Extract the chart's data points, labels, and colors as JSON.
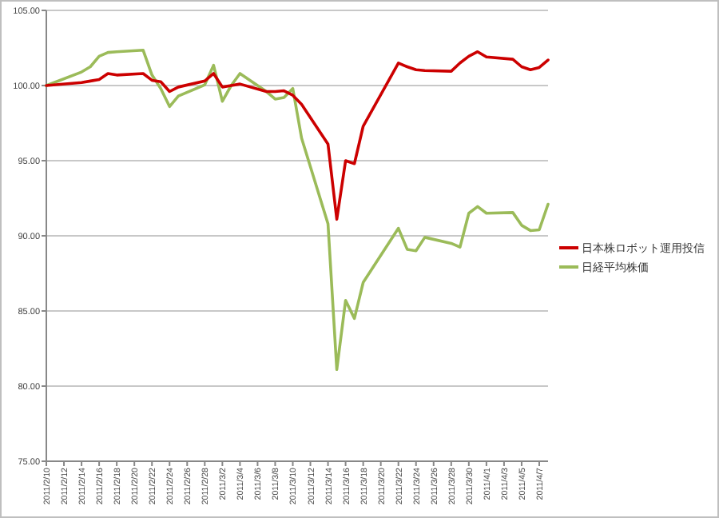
{
  "chart_data": {
    "type": "line",
    "x": [
      "2011-02-10",
      "2011-02-14",
      "2011-02-15",
      "2011-02-16",
      "2011-02-17",
      "2011-02-18",
      "2011-02-21",
      "2011-02-22",
      "2011-02-23",
      "2011-02-24",
      "2011-02-25",
      "2011-02-28",
      "2011-03-01",
      "2011-03-02",
      "2011-03-03",
      "2011-03-04",
      "2011-03-07",
      "2011-03-08",
      "2011-03-09",
      "2011-03-10",
      "2011-03-11",
      "2011-03-14",
      "2011-03-15",
      "2011-03-16",
      "2011-03-17",
      "2011-03-18",
      "2011-03-22",
      "2011-03-23",
      "2011-03-24",
      "2011-03-25",
      "2011-03-28",
      "2011-03-29",
      "2011-03-30",
      "2011-03-31",
      "2011-04-01",
      "2011-04-04",
      "2011-04-05",
      "2011-04-06",
      "2011-04-07",
      "2011-04-08"
    ],
    "series": [
      {
        "name": "日本株ロボット運用投信",
        "color": "#cc0000",
        "values": [
          100.0,
          100.2,
          100.3,
          100.4,
          100.8,
          100.7,
          100.8,
          100.35,
          100.25,
          99.6,
          99.9,
          100.3,
          100.8,
          99.9,
          100.0,
          100.1,
          99.6,
          99.6,
          99.65,
          99.35,
          98.75,
          96.1,
          91.1,
          95.0,
          94.8,
          97.3,
          101.5,
          101.25,
          101.05,
          101.0,
          100.95,
          101.5,
          101.95,
          102.25,
          101.9,
          101.75,
          101.25,
          101.05,
          101.2,
          101.7
        ]
      },
      {
        "name": "日経平均株価",
        "color": "#9bbb59",
        "values": [
          100.0,
          100.9,
          101.25,
          101.95,
          102.2,
          102.25,
          102.35,
          100.7,
          99.8,
          98.6,
          99.3,
          100.05,
          101.35,
          98.95,
          100.0,
          100.8,
          99.6,
          99.1,
          99.2,
          99.8,
          96.5,
          90.8,
          81.1,
          85.7,
          84.5,
          86.9,
          90.5,
          89.1,
          89.0,
          89.9,
          89.5,
          89.25,
          91.5,
          91.95,
          91.5,
          91.55,
          90.7,
          90.35,
          90.4,
          92.1
        ]
      }
    ],
    "xlim": [
      "2011-02-10",
      "2011-04-08"
    ],
    "xticks": [
      {
        "value": "2011-02-10",
        "label": "2011/2/10"
      },
      {
        "value": "2011-02-12",
        "label": "2011/2/12"
      },
      {
        "value": "2011-02-14",
        "label": "2011/2/14"
      },
      {
        "value": "2011-02-16",
        "label": "2011/2/16"
      },
      {
        "value": "2011-02-18",
        "label": "2011/2/18"
      },
      {
        "value": "2011-02-20",
        "label": "2011/2/20"
      },
      {
        "value": "2011-02-22",
        "label": "2011/2/22"
      },
      {
        "value": "2011-02-24",
        "label": "2011/2/24"
      },
      {
        "value": "2011-02-26",
        "label": "2011/2/26"
      },
      {
        "value": "2011-02-28",
        "label": "2011/2/28"
      },
      {
        "value": "2011-03-02",
        "label": "2011/3/2"
      },
      {
        "value": "2011-03-04",
        "label": "2011/3/4"
      },
      {
        "value": "2011-03-06",
        "label": "2011/3/6"
      },
      {
        "value": "2011-03-08",
        "label": "2011/3/8"
      },
      {
        "value": "2011-03-10",
        "label": "2011/3/10"
      },
      {
        "value": "2011-03-12",
        "label": "2011/3/12"
      },
      {
        "value": "2011-03-14",
        "label": "2011/3/14"
      },
      {
        "value": "2011-03-16",
        "label": "2011/3/16"
      },
      {
        "value": "2011-03-18",
        "label": "2011/3/18"
      },
      {
        "value": "2011-03-20",
        "label": "2011/3/20"
      },
      {
        "value": "2011-03-22",
        "label": "2011/3/22"
      },
      {
        "value": "2011-03-24",
        "label": "2011/3/24"
      },
      {
        "value": "2011-03-26",
        "label": "2011/3/26"
      },
      {
        "value": "2011-03-28",
        "label": "2011/3/28"
      },
      {
        "value": "2011-03-30",
        "label": "2011/3/30"
      },
      {
        "value": "2011-04-01",
        "label": "2011/4/1"
      },
      {
        "value": "2011-04-03",
        "label": "2011/4/3"
      },
      {
        "value": "2011-04-05",
        "label": "2011/4/5"
      },
      {
        "value": "2011-04-07",
        "label": "2011/4/7"
      }
    ],
    "ylim": [
      75,
      105
    ],
    "yticks": [
      {
        "value": 75,
        "label": "75.00"
      },
      {
        "value": 80,
        "label": "80.00"
      },
      {
        "value": 85,
        "label": "85.00"
      },
      {
        "value": 90,
        "label": "90.00"
      },
      {
        "value": 95,
        "label": "95.00"
      },
      {
        "value": 100,
        "label": "100.00"
      },
      {
        "value": 105,
        "label": "105.00"
      }
    ],
    "grid": "y",
    "legend": "right",
    "marker": "none",
    "line_style": "solid"
  }
}
